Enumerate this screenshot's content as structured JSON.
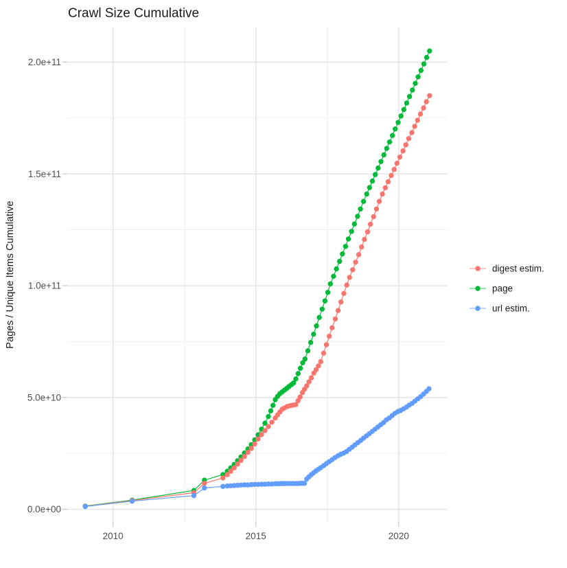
{
  "window_title": "Crawl Size Cumulative",
  "chart_data": {
    "type": "line",
    "title": "Crawl Size Cumulative",
    "xlabel": "",
    "ylabel": "Pages / Unique Items Cumulative",
    "value_unit": "billions (1e9) of pages / unique items; y tick labels shown in scientific notation",
    "grid": true,
    "legend_position": "right",
    "x_range": [
      2008.4,
      2021.71
    ],
    "y_range": [
      -5.7,
      215.5
    ],
    "x_ticks": {
      "values": [
        2010,
        2015,
        2020
      ],
      "labels": [
        "2010",
        "2015",
        "2020"
      ],
      "minor": [
        2012.5,
        2017.5
      ]
    },
    "y_ticks": {
      "values": [
        0,
        50,
        100,
        150,
        200
      ],
      "labels": [
        "0.0e+00",
        "5.0e+10",
        "1.0e+11",
        "1.5e+11",
        "2.0e+11"
      ],
      "minor": [
        25,
        75,
        125,
        175
      ]
    },
    "series": [
      {
        "name": "digest estim.",
        "color": "#F8766D",
        "x": [
          2009.03,
          2010.67,
          2012.83,
          2013.2,
          2013.85,
          2014.0,
          2014.12,
          2014.24,
          2014.36,
          2014.48,
          2014.6,
          2014.72,
          2014.84,
          2014.96,
          2015.08,
          2015.2,
          2015.32,
          2015.44,
          2015.56,
          2015.68,
          2015.76,
          2015.84,
          2015.92,
          2016.0,
          2016.1,
          2016.2,
          2016.3,
          2016.4,
          2016.48,
          2016.55,
          2016.63,
          2016.7,
          2016.78,
          2016.86,
          2016.94,
          2017.03,
          2017.11,
          2017.19,
          2017.27,
          2017.37,
          2017.47,
          2017.57,
          2017.67,
          2017.78,
          2017.88,
          2017.98,
          2018.08,
          2018.18,
          2018.28,
          2018.39,
          2018.49,
          2018.6,
          2018.7,
          2018.8,
          2018.91,
          2019.01,
          2019.12,
          2019.22,
          2019.32,
          2019.43,
          2019.53,
          2019.63,
          2019.74,
          2019.84,
          2019.94,
          2020.04,
          2020.15,
          2020.25,
          2020.35,
          2020.46,
          2020.56,
          2020.66,
          2020.76,
          2020.87,
          2020.97,
          2021.08
        ],
        "y": [
          1.3,
          3.9,
          7.4,
          11.6,
          14,
          15.5,
          17,
          18.5,
          20.2,
          21.9,
          23.6,
          25.4,
          27.2,
          29.2,
          31.4,
          33.4,
          35.2,
          37,
          38.9,
          40.8,
          42.2,
          43.5,
          44.7,
          45.3,
          46,
          46.3,
          46.6,
          46.8,
          48.6,
          50.2,
          52.2,
          53.7,
          55.2,
          57,
          58.8,
          60.9,
          62.4,
          64.1,
          66,
          69.8,
          73.6,
          77.4,
          81.2,
          85.1,
          88.9,
          92.7,
          96.5,
          100.3,
          103.7,
          107.1,
          110.5,
          113.9,
          117.3,
          120.7,
          124.1,
          127.5,
          130.9,
          134.3,
          137.7,
          141,
          143.8,
          146.5,
          149.3,
          152,
          154.8,
          157.5,
          160.3,
          163,
          165.8,
          168.5,
          171.3,
          174,
          176.8,
          179.5,
          182.3,
          185
        ]
      },
      {
        "name": "page",
        "color": "#00BA38",
        "x": [
          2009.03,
          2010.67,
          2012.83,
          2013.2,
          2013.85,
          2014.0,
          2014.12,
          2014.24,
          2014.36,
          2014.48,
          2014.6,
          2014.72,
          2014.84,
          2014.96,
          2015.08,
          2015.2,
          2015.32,
          2015.44,
          2015.52,
          2015.6,
          2015.68,
          2015.76,
          2015.84,
          2015.92,
          2016.0,
          2016.08,
          2016.16,
          2016.24,
          2016.32,
          2016.4,
          2016.48,
          2016.56,
          2016.64,
          2016.72,
          2016.82,
          2016.92,
          2017.02,
          2017.12,
          2017.22,
          2017.32,
          2017.42,
          2017.52,
          2017.61,
          2017.72,
          2017.82,
          2017.93,
          2018.03,
          2018.14,
          2018.24,
          2018.35,
          2018.45,
          2018.56,
          2018.66,
          2018.77,
          2018.88,
          2018.98,
          2019.08,
          2019.18,
          2019.28,
          2019.38,
          2019.48,
          2019.58,
          2019.68,
          2019.78,
          2019.88,
          2019.98,
          2020.08,
          2020.18,
          2020.28,
          2020.38,
          2020.48,
          2020.58,
          2020.68,
          2020.78,
          2020.88,
          2020.98,
          2021.08
        ],
        "y": [
          1.4,
          4.1,
          8.4,
          13,
          15.5,
          17,
          18.5,
          20,
          21.7,
          23.4,
          25.2,
          27,
          28.9,
          31,
          33.3,
          35.8,
          38.5,
          41.5,
          44,
          46.5,
          49,
          50.5,
          51.7,
          52.5,
          53.3,
          54.1,
          54.9,
          55.7,
          56.5,
          58.3,
          60.7,
          63.1,
          65.5,
          67.2,
          70.9,
          74.6,
          78.3,
          82,
          85.8,
          89.5,
          93.2,
          97,
          100.8,
          104.2,
          107.5,
          110.9,
          114.2,
          117.6,
          120.9,
          124.3,
          127.6,
          131,
          134.3,
          137.7,
          141,
          143.9,
          146.8,
          149.7,
          152.6,
          155.5,
          158.5,
          161.4,
          164.3,
          167.2,
          170.1,
          173,
          175.9,
          178.8,
          181.7,
          184.6,
          187.5,
          190.5,
          193.4,
          196.3,
          199.2,
          202.1,
          205
        ]
      },
      {
        "name": "url estim.",
        "color": "#619CFF",
        "x": [
          2009.03,
          2010.67,
          2012.83,
          2013.2,
          2013.85,
          2014.0,
          2014.12,
          2014.24,
          2014.36,
          2014.48,
          2014.6,
          2014.72,
          2014.84,
          2014.96,
          2015.08,
          2015.2,
          2015.32,
          2015.44,
          2015.56,
          2015.68,
          2015.76,
          2015.84,
          2015.92,
          2016.0,
          2016.1,
          2016.2,
          2016.3,
          2016.4,
          2016.48,
          2016.55,
          2016.63,
          2016.7,
          2016.78,
          2016.86,
          2016.94,
          2017.03,
          2017.11,
          2017.19,
          2017.27,
          2017.37,
          2017.47,
          2017.57,
          2017.67,
          2017.77,
          2017.87,
          2017.97,
          2018.07,
          2018.17,
          2018.27,
          2018.37,
          2018.47,
          2018.57,
          2018.67,
          2018.77,
          2018.87,
          2018.97,
          2019.07,
          2019.17,
          2019.27,
          2019.37,
          2019.47,
          2019.57,
          2019.67,
          2019.77,
          2019.87,
          2019.97,
          2020.07,
          2020.17,
          2020.27,
          2020.37,
          2020.47,
          2020.57,
          2020.67,
          2020.77,
          2020.87,
          2020.97,
          2021.06
        ],
        "y": [
          1.2,
          3.6,
          6.1,
          9.5,
          10.2,
          10.4,
          10.5,
          10.6,
          10.7,
          10.8,
          10.9,
          10.9,
          11,
          11.1,
          11.1,
          11.2,
          11.2,
          11.3,
          11.3,
          11.4,
          11.4,
          11.4,
          11.5,
          11.5,
          11.5,
          11.5,
          11.5,
          11.5,
          11.5,
          11.6,
          11.6,
          11.6,
          13.5,
          14.5,
          15.5,
          16.4,
          17.2,
          17.9,
          18.6,
          19.5,
          20.4,
          21.3,
          22.2,
          23.1,
          23.9,
          24.6,
          25.1,
          25.8,
          26.8,
          27.8,
          28.8,
          29.8,
          30.8,
          31.8,
          32.8,
          33.8,
          34.8,
          35.8,
          36.8,
          37.8,
          38.8,
          40,
          40.8,
          41.9,
          42.9,
          43.7,
          44.2,
          44.9,
          45.7,
          46.6,
          47.4,
          48.4,
          49.4,
          50.4,
          51.5,
          52.7,
          53.9
        ]
      }
    ]
  },
  "colors": {
    "background": "#FFFFFF",
    "grid_major": "#E4E4E4",
    "grid_minor": "#F0F0F0",
    "tick": "#C9C9C9",
    "axis_text": "#4D4D4D",
    "title_text": "#1A1A1A",
    "series_digest": "#F8766D",
    "series_page": "#00BA38",
    "series_url": "#619CFF"
  }
}
